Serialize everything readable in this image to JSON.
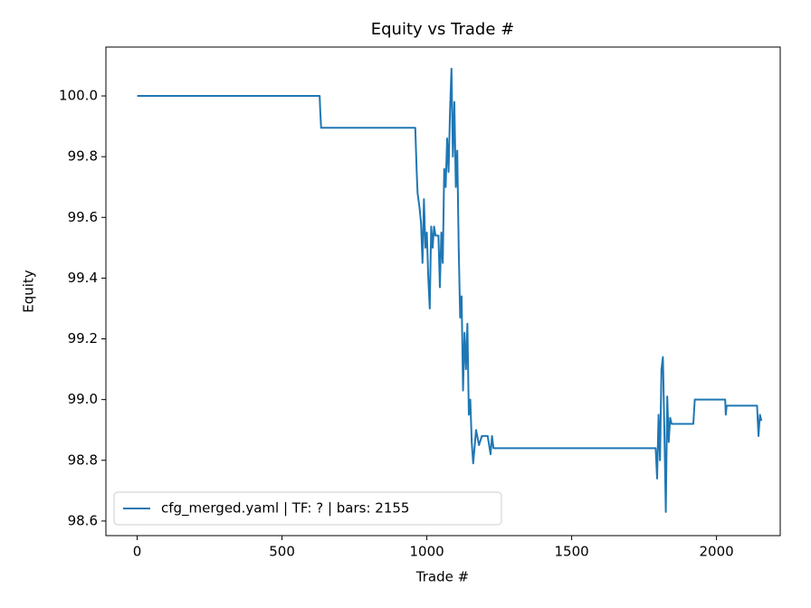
{
  "chart_data": {
    "type": "line",
    "title": "Equity vs Trade #",
    "x_label": "Trade #",
    "y_label": "Equity",
    "x": [
      0,
      630,
      632,
      635,
      960,
      965,
      968,
      975,
      980,
      985,
      990,
      995,
      1000,
      1005,
      1010,
      1015,
      1020,
      1025,
      1030,
      1040,
      1045,
      1050,
      1055,
      1060,
      1065,
      1070,
      1075,
      1080,
      1085,
      1090,
      1095,
      1100,
      1105,
      1110,
      1115,
      1120,
      1125,
      1130,
      1135,
      1140,
      1145,
      1150,
      1155,
      1160,
      1170,
      1180,
      1190,
      1210,
      1220,
      1225,
      1230,
      1790,
      1795,
      1800,
      1805,
      1810,
      1815,
      1820,
      1825,
      1830,
      1835,
      1840,
      1845,
      1920,
      1925,
      2000,
      2030,
      2032,
      2035,
      2140,
      2145,
      2150,
      2155
    ],
    "series": [
      {
        "name": "cfg_merged.yaml | TF: ? | bars: 2155",
        "color": "#1f77b4",
        "values": [
          100.0,
          100.0,
          99.95,
          99.895,
          99.895,
          99.75,
          99.68,
          99.63,
          99.58,
          99.45,
          99.66,
          99.5,
          99.55,
          99.4,
          99.3,
          99.57,
          99.5,
          99.57,
          99.54,
          99.54,
          99.37,
          99.55,
          99.45,
          99.76,
          99.7,
          99.86,
          99.75,
          99.95,
          100.09,
          99.8,
          99.98,
          99.7,
          99.82,
          99.5,
          99.27,
          99.34,
          99.03,
          99.22,
          99.1,
          99.25,
          98.95,
          99.0,
          98.86,
          98.79,
          98.9,
          98.85,
          98.88,
          98.88,
          98.82,
          98.88,
          98.84,
          98.84,
          98.74,
          98.95,
          98.8,
          99.1,
          99.14,
          98.9,
          98.63,
          99.01,
          98.86,
          98.94,
          98.92,
          98.92,
          99.0,
          99.0,
          99.0,
          98.95,
          98.98,
          98.98,
          98.88,
          98.95,
          98.93
        ]
      }
    ],
    "xlim": [
      -108,
      2220
    ],
    "ylim": [
      98.552,
      100.161
    ],
    "xticks": [
      0,
      500,
      1000,
      1500,
      2000
    ],
    "yticks": [
      98.6,
      98.8,
      {
        "value": 99.0,
        "label": "99.0"
      },
      99.2,
      99.4,
      99.6,
      99.8,
      {
        "value": 100.0,
        "label": "100.0"
      }
    ],
    "legend": "lower left"
  }
}
